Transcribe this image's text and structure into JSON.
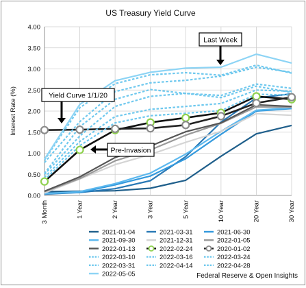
{
  "chart_data": {
    "type": "line",
    "title": "US Treasury Yield Curve",
    "xlabel": "",
    "ylabel": "Interest Rate (%)",
    "categories": [
      "3 Month",
      "1 Year",
      "2 Year",
      "3 Year",
      "5 Year",
      "10 Year",
      "20 Year",
      "30 Year"
    ],
    "ylim": [
      0,
      4
    ],
    "yticks": [
      "0.00",
      "0.50",
      "1.00",
      "1.50",
      "2.00",
      "2.50",
      "3.00",
      "3.50",
      "4.00"
    ],
    "grid": true,
    "legend_position": "bottom",
    "source": "Federal Reserve & Open Insights",
    "annotations": [
      {
        "label": "Last Week",
        "points_to": "2022-04-28"
      },
      {
        "label": "Yield Curve 1/1/20",
        "points_to": "2020-01-02"
      },
      {
        "label": "Pre-Invasion",
        "points_to": "2022-02-24"
      }
    ],
    "series": [
      {
        "name": "2021-01-04",
        "values": [
          0.09,
          0.1,
          0.11,
          0.17,
          0.36,
          0.93,
          1.46,
          1.66
        ],
        "color": "#1f5f8b",
        "dash": "solid",
        "marker": "none"
      },
      {
        "name": "2021-03-31",
        "values": [
          0.03,
          0.07,
          0.16,
          0.35,
          0.92,
          1.74,
          2.31,
          2.41
        ],
        "color": "#2878b5",
        "dash": "solid",
        "marker": "none"
      },
      {
        "name": "2021-06-30",
        "values": [
          0.05,
          0.07,
          0.25,
          0.46,
          0.87,
          1.45,
          2.0,
          2.06
        ],
        "color": "#3399dd",
        "dash": "solid",
        "marker": "none"
      },
      {
        "name": "2021-09-30",
        "values": [
          0.04,
          0.09,
          0.28,
          0.53,
          0.98,
          1.52,
          2.02,
          2.08
        ],
        "color": "#5cb8ee",
        "dash": "solid",
        "marker": "none"
      },
      {
        "name": "2021-12-31",
        "values": [
          0.06,
          0.39,
          0.73,
          0.97,
          1.26,
          1.52,
          1.94,
          1.9
        ],
        "color": "#d4d4d4",
        "dash": "solid",
        "marker": "none"
      },
      {
        "name": "2022-01-05",
        "values": [
          0.09,
          0.4,
          0.82,
          1.08,
          1.43,
          1.71,
          2.1,
          2.09
        ],
        "color": "#9a9a9a",
        "dash": "solid",
        "marker": "none"
      },
      {
        "name": "2022-01-13",
        "values": [
          0.1,
          0.44,
          0.9,
          1.17,
          1.51,
          1.72,
          2.15,
          2.11
        ],
        "color": "#555555",
        "dash": "solid",
        "marker": "none"
      },
      {
        "name": "2022-02-24",
        "values": [
          0.33,
          1.08,
          1.55,
          1.73,
          1.84,
          1.96,
          2.35,
          2.28
        ],
        "color": "#111111",
        "dash": "solid",
        "marker": "circle-green"
      },
      {
        "name": "2020-01-02",
        "values": [
          1.55,
          1.56,
          1.58,
          1.59,
          1.67,
          1.88,
          2.19,
          2.33
        ],
        "color": "#222222",
        "dash": "solid",
        "marker": "circle-gray"
      },
      {
        "name": "2022-03-10",
        "values": [
          0.37,
          1.18,
          1.72,
          1.89,
          1.95,
          2.01,
          2.4,
          2.38
        ],
        "color": "#6ec8ee",
        "dash": "dashed",
        "marker": "none"
      },
      {
        "name": "2022-03-16",
        "values": [
          0.43,
          1.28,
          1.87,
          2.04,
          2.11,
          2.18,
          2.5,
          2.47
        ],
        "color": "#6ec8ee",
        "dash": "dashed",
        "marker": "none"
      },
      {
        "name": "2022-03-24",
        "values": [
          0.5,
          1.41,
          2.11,
          2.35,
          2.42,
          2.37,
          2.64,
          2.54
        ],
        "color": "#6ec8ee",
        "dash": "dashed",
        "marker": "none"
      },
      {
        "name": "2022-03-31",
        "values": [
          0.52,
          1.63,
          2.28,
          2.51,
          2.42,
          2.32,
          2.59,
          2.44
        ],
        "color": "#6ec8ee",
        "dash": "dashed",
        "marker": "none"
      },
      {
        "name": "2022-04-14",
        "values": [
          0.78,
          1.75,
          2.46,
          2.67,
          2.73,
          2.83,
          3.04,
          2.92
        ],
        "color": "#6ec8ee",
        "dash": "dashed",
        "marker": "none"
      },
      {
        "name": "2022-04-28",
        "values": [
          0.84,
          2.08,
          2.65,
          2.86,
          2.91,
          2.85,
          3.09,
          2.9
        ],
        "color": "#6ec8ee",
        "dash": "dashed",
        "marker": "none"
      },
      {
        "name": "2022-05-05",
        "values": [
          0.86,
          2.16,
          2.72,
          2.92,
          3.02,
          3.04,
          3.35,
          3.14
        ],
        "color": "#8dd4f5",
        "dash": "solid",
        "marker": "none"
      }
    ]
  }
}
